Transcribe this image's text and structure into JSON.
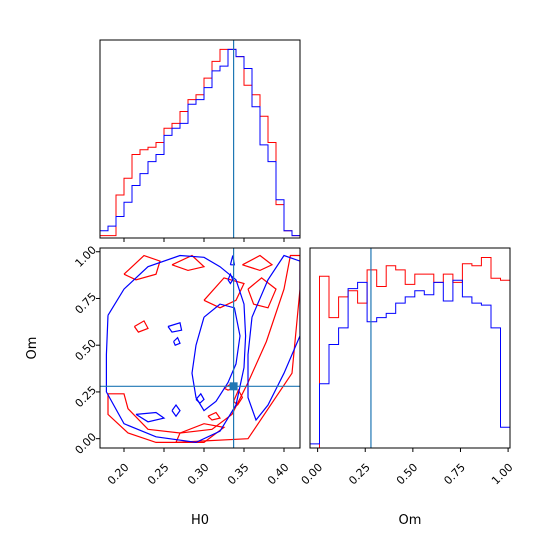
{
  "chart_data": {
    "type": "corner",
    "parameters": [
      "H0",
      "Om"
    ],
    "truths": {
      "H0": 0.337,
      "Om": 0.28
    },
    "colors": {
      "series_a": "#ff0000",
      "series_b": "#0000ff",
      "truth": "#1f77b4"
    },
    "grid": false,
    "panels": [
      {
        "id": "hist-H0",
        "type": "histogram",
        "xlim": [
          0.17,
          0.42
        ],
        "x_ticks": [
          0.2,
          0.25,
          0.3,
          0.35,
          0.4
        ],
        "bin_edges": [
          0.17,
          0.18,
          0.19,
          0.2,
          0.21,
          0.22,
          0.23,
          0.24,
          0.25,
          0.26,
          0.27,
          0.28,
          0.29,
          0.3,
          0.31,
          0.32,
          0.33,
          0.34,
          0.35,
          0.36,
          0.37,
          0.38,
          0.39,
          0.4,
          0.41,
          0.42
        ],
        "series": [
          {
            "color_key": "series_a",
            "counts": [
              0.01,
              0.01,
              0.18,
              0.25,
              0.35,
              0.37,
              0.38,
              0.4,
              0.46,
              0.48,
              0.53,
              0.58,
              0.6,
              0.67,
              0.74,
              0.79,
              0.79,
              0.76,
              0.64,
              0.6,
              0.51,
              0.4,
              0.14,
              0.03,
              0.01
            ]
          },
          {
            "color_key": "series_b",
            "counts": [
              0.03,
              0.05,
              0.09,
              0.15,
              0.22,
              0.27,
              0.32,
              0.35,
              0.43,
              0.46,
              0.48,
              0.56,
              0.58,
              0.63,
              0.7,
              0.72,
              0.79,
              0.76,
              0.71,
              0.55,
              0.39,
              0.32,
              0.16,
              0.03,
              0.01
            ]
          }
        ]
      },
      {
        "id": "hist-Om",
        "type": "histogram",
        "xlim": [
          -0.04,
          1.01
        ],
        "x_ticks": [
          0.0,
          0.25,
          0.5,
          0.75,
          1.0
        ],
        "tick_labels": [
          "0.00",
          "0.25",
          "0.50",
          "0.75",
          "1.00"
        ],
        "xlabel": "Om",
        "bin_edges": [
          -0.04,
          0.01,
          0.06,
          0.11,
          0.16,
          0.21,
          0.26,
          0.31,
          0.36,
          0.41,
          0.46,
          0.51,
          0.56,
          0.61,
          0.66,
          0.71,
          0.76,
          0.81,
          0.86,
          0.91,
          0.96,
          1.01
        ],
        "series": [
          {
            "color_key": "series_a",
            "counts": [
              0.0,
              0.83,
              0.63,
              0.73,
              0.76,
              0.7,
              0.86,
              0.78,
              0.88,
              0.86,
              0.79,
              0.84,
              0.84,
              0.8,
              0.84,
              0.8,
              0.89,
              0.88,
              0.92,
              0.82,
              0.81
            ]
          },
          {
            "color_key": "series_b",
            "counts": [
              0.02,
              0.31,
              0.5,
              0.58,
              0.77,
              0.8,
              0.61,
              0.63,
              0.65,
              0.7,
              0.73,
              0.76,
              0.74,
              0.8,
              0.71,
              0.81,
              0.73,
              0.7,
              0.69,
              0.58,
              0.1
            ]
          }
        ]
      },
      {
        "id": "contour-H0-Om",
        "type": "contour",
        "xlim": [
          0.17,
          0.42
        ],
        "ylim": [
          -0.05,
          1.02
        ],
        "x_ticks": [
          0.2,
          0.25,
          0.3,
          0.35,
          0.4
        ],
        "y_ticks": [
          0.0,
          0.25,
          0.5,
          0.75,
          1.0
        ],
        "x_tick_labels": [
          "0.20",
          "0.25",
          "0.30",
          "0.35",
          "0.40"
        ],
        "y_tick_labels": [
          "0.00",
          "0.25",
          "0.50",
          "0.75",
          "1.00"
        ],
        "xlabel": "H0",
        "ylabel": "Om",
        "series": [
          {
            "color_key": "series_a",
            "contours": [
              [
                [
                  0.265,
                  -0.02
                ],
                [
                  0.355,
                  0.0
                ],
                [
                  0.41,
                  0.35
                ],
                [
                  0.42,
                  0.8
                ],
                [
                  0.42,
                  0.98
                ],
                [
                  0.408,
                  0.98
                ],
                [
                  0.4,
                  0.8
                ],
                [
                  0.378,
                  0.52
                ],
                [
                  0.355,
                  0.3
                ],
                [
                  0.335,
                  0.13
                ],
                [
                  0.31,
                  0.05
                ],
                [
                  0.27,
                  0.03
                ],
                [
                  0.265,
                  -0.02
                ]
              ],
              [
                [
                  0.18,
                  0.24
                ],
                [
                  0.18,
                  0.13
                ],
                [
                  0.205,
                  0.03
                ],
                [
                  0.24,
                  -0.02
                ],
                [
                  0.3,
                  -0.02
                ],
                [
                  0.325,
                  0.06
                ],
                [
                  0.3,
                  0.08
                ],
                [
                  0.27,
                  0.03
                ],
                [
                  0.23,
                  0.05
                ],
                [
                  0.205,
                  0.16
                ],
                [
                  0.2,
                  0.24
                ],
                [
                  0.18,
                  0.24
                ]
              ],
              [
                [
                  0.2,
                  0.88
                ],
                [
                  0.225,
                  0.98
                ],
                [
                  0.245,
                  0.95
                ],
                [
                  0.24,
                  0.88
                ],
                [
                  0.215,
                  0.85
                ],
                [
                  0.2,
                  0.88
                ]
              ],
              [
                [
                  0.26,
                  0.93
                ],
                [
                  0.285,
                  0.98
                ],
                [
                  0.3,
                  0.92
                ],
                [
                  0.28,
                  0.9
                ],
                [
                  0.26,
                  0.93
                ]
              ],
              [
                [
                  0.3,
                  0.74
                ],
                [
                  0.325,
                  0.86
                ],
                [
                  0.35,
                  0.83
                ],
                [
                  0.34,
                  0.74
                ],
                [
                  0.32,
                  0.7
                ],
                [
                  0.3,
                  0.74
                ]
              ],
              [
                [
                  0.348,
                  0.93
                ],
                [
                  0.37,
                  0.98
                ],
                [
                  0.385,
                  0.93
                ],
                [
                  0.37,
                  0.9
                ],
                [
                  0.348,
                  0.93
                ]
              ],
              [
                [
                  0.355,
                  0.8
                ],
                [
                  0.372,
                  0.86
                ],
                [
                  0.39,
                  0.8
                ],
                [
                  0.38,
                  0.7
                ],
                [
                  0.362,
                  0.72
                ],
                [
                  0.355,
                  0.8
                ]
              ],
              [
                [
                  0.213,
                  0.6
                ],
                [
                  0.225,
                  0.63
                ],
                [
                  0.23,
                  0.59
                ],
                [
                  0.218,
                  0.57
                ],
                [
                  0.213,
                  0.6
                ]
              ],
              [
                [
                  0.305,
                  0.12
                ],
                [
                  0.315,
                  0.14
                ],
                [
                  0.32,
                  0.11
                ],
                [
                  0.31,
                  0.1
                ],
                [
                  0.305,
                  0.12
                ]
              ],
              [
                [
                  0.337,
                  0.2
                ],
                [
                  0.343,
                  0.26
                ],
                [
                  0.348,
                  0.22
                ],
                [
                  0.342,
                  0.18
                ],
                [
                  0.337,
                  0.2
                ]
              ],
              [
                [
                  0.325,
                  0.27
                ],
                [
                  0.333,
                  0.29
                ],
                [
                  0.338,
                  0.27
                ],
                [
                  0.33,
                  0.26
                ],
                [
                  0.325,
                  0.27
                ]
              ]
            ]
          },
          {
            "color_key": "series_b",
            "contours": [
              [
                [
                  0.18,
                  0.66
                ],
                [
                  0.2,
                  0.8
                ],
                [
                  0.23,
                  0.92
                ],
                [
                  0.27,
                  0.98
                ],
                [
                  0.3,
                  0.97
                ],
                [
                  0.32,
                  0.92
                ],
                [
                  0.34,
                  0.85
                ],
                [
                  0.35,
                  0.72
                ],
                [
                  0.352,
                  0.55
                ],
                [
                  0.35,
                  0.38
                ],
                [
                  0.34,
                  0.18
                ],
                [
                  0.32,
                  0.04
                ],
                [
                  0.29,
                  -0.02
                ],
                [
                  0.24,
                  0.01
                ],
                [
                  0.2,
                  0.08
                ],
                [
                  0.178,
                  0.25
                ],
                [
                  0.178,
                  0.45
                ],
                [
                  0.18,
                  0.66
                ]
              ],
              [
                [
                  0.3,
                  0.65
                ],
                [
                  0.32,
                  0.72
                ],
                [
                  0.338,
                  0.7
                ],
                [
                  0.345,
                  0.55
                ],
                [
                  0.34,
                  0.4
                ],
                [
                  0.33,
                  0.3
                ],
                [
                  0.315,
                  0.2
                ],
                [
                  0.3,
                  0.15
                ],
                [
                  0.29,
                  0.22
                ],
                [
                  0.285,
                  0.35
                ],
                [
                  0.29,
                  0.5
                ],
                [
                  0.3,
                  0.65
                ]
              ],
              [
                [
                  0.36,
                  0.65
                ],
                [
                  0.38,
                  0.85
                ],
                [
                  0.4,
                  0.98
                ],
                [
                  0.42,
                  0.95
                ],
                [
                  0.42,
                  0.55
                ],
                [
                  0.4,
                  0.35
                ],
                [
                  0.38,
                  0.18
                ],
                [
                  0.365,
                  0.1
                ],
                [
                  0.355,
                  0.22
                ],
                [
                  0.355,
                  0.45
                ],
                [
                  0.36,
                  0.65
                ]
              ],
              [
                [
                  0.215,
                  0.13
                ],
                [
                  0.24,
                  0.14
                ],
                [
                  0.25,
                  0.11
                ],
                [
                  0.23,
                  0.09
                ],
                [
                  0.215,
                  0.13
                ]
              ],
              [
                [
                  0.255,
                  0.6
                ],
                [
                  0.27,
                  0.62
                ],
                [
                  0.272,
                  0.58
                ],
                [
                  0.26,
                  0.57
                ],
                [
                  0.255,
                  0.6
                ]
              ],
              [
                [
                  0.262,
                  0.52
                ],
                [
                  0.267,
                  0.54
                ],
                [
                  0.27,
                  0.51
                ],
                [
                  0.264,
                  0.5
                ],
                [
                  0.262,
                  0.52
                ]
              ],
              [
                [
                  0.26,
                  0.15
                ],
                [
                  0.265,
                  0.18
                ],
                [
                  0.27,
                  0.15
                ],
                [
                  0.265,
                  0.12
                ],
                [
                  0.26,
                  0.15
                ]
              ],
              [
                [
                  0.333,
                  0.93
                ],
                [
                  0.336,
                  0.98
                ],
                [
                  0.338,
                  0.93
                ],
                [
                  0.333,
                  0.93
                ]
              ],
              [
                [
                  0.33,
                  0.85
                ],
                [
                  0.333,
                  0.88
                ],
                [
                  0.336,
                  0.85
                ],
                [
                  0.333,
                  0.83
                ],
                [
                  0.33,
                  0.85
                ]
              ],
              [
                [
                  0.29,
                  0.21
                ],
                [
                  0.296,
                  0.24
                ],
                [
                  0.3,
                  0.21
                ],
                [
                  0.295,
                  0.19
                ],
                [
                  0.29,
                  0.21
                ]
              ]
            ]
          }
        ]
      }
    ]
  }
}
